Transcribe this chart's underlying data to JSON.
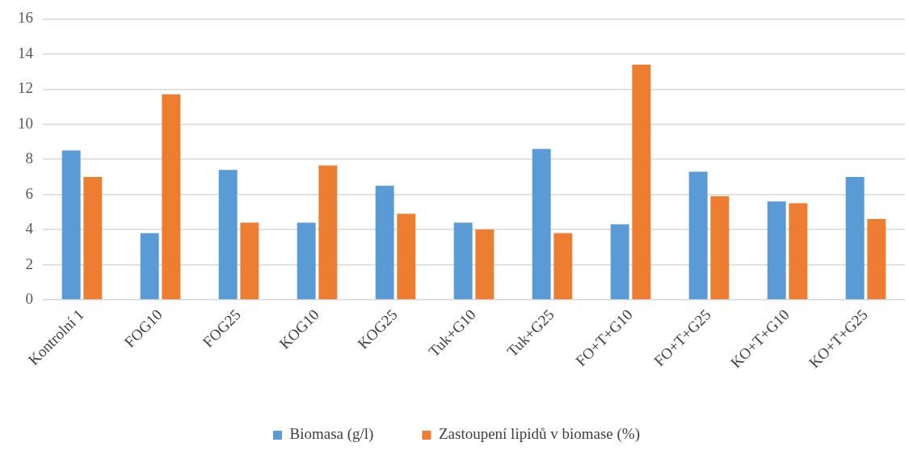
{
  "chart_data": {
    "type": "bar",
    "categories": [
      "Kontrolní 1",
      "FOG10",
      "FOG25",
      "KOG10",
      "KOG25",
      "Tuk+G10",
      "Tuk+G25",
      "FO+T+G10",
      "FO+T+G25",
      "KO+T+G10",
      "KO+T+G25"
    ],
    "series": [
      {
        "name": "Biomasa (g/l)",
        "color": "#5b9bd5",
        "values": [
          8.5,
          3.8,
          7.4,
          4.4,
          6.5,
          4.4,
          8.6,
          4.3,
          7.3,
          5.6,
          7.0
        ]
      },
      {
        "name": "Zastoupení lipidů v biomase (%)",
        "color": "#ed7d31",
        "values": [
          7.0,
          11.7,
          4.4,
          7.65,
          4.9,
          4.0,
          3.8,
          13.4,
          5.9,
          5.5,
          4.6
        ]
      }
    ],
    "ylim": [
      0,
      16
    ],
    "yticks": [
      0,
      2,
      4,
      6,
      8,
      10,
      12,
      14,
      16
    ],
    "grid": "y",
    "legend": "bottom"
  }
}
